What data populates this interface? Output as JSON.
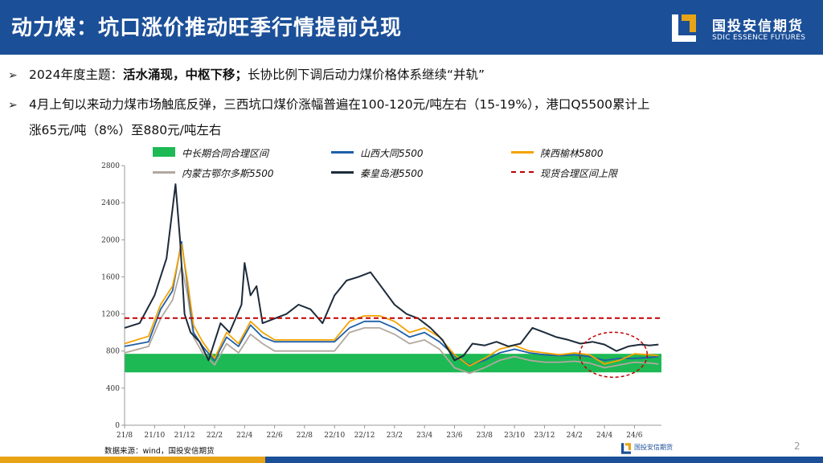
{
  "header": {
    "title": "动力煤：坑口涨价推动旺季行情提前兑现",
    "logo_cn": "国投安信期货",
    "logo_en": "SDIC ESSENCE FUTURES",
    "color": "#1b4f98"
  },
  "bullets": [
    {
      "pre": "2024年度主题：",
      "bold": "活水涌现，中枢下移；",
      "post": "长协比例下调后动力煤价格体系继续“并轨”"
    },
    {
      "line1": "4月上旬以来动力煤市场触底反弹，三西坑口煤价涨幅普遍在100-120元/吨左右（15-19%），港口Q5500累计上",
      "line2": "涨65元/吨（8%）至880元/吨左右"
    }
  ],
  "chart_data": {
    "type": "line",
    "ylim": [
      0,
      2800
    ],
    "yticks": [
      0,
      400,
      800,
      1200,
      1600,
      2000,
      2400,
      2800
    ],
    "xtick_labels": [
      "21/8",
      "21/10",
      "21/12",
      "22/2",
      "22/4",
      "22/6",
      "22/8",
      "22/10",
      "22/12",
      "23/2",
      "23/4",
      "23/6",
      "23/8",
      "23/10",
      "23/12",
      "24/2",
      "24/4",
      "24/6"
    ],
    "band": {
      "name": "中长期合同合理区间",
      "range": [
        570,
        770
      ],
      "color": "#1db954"
    },
    "reference": {
      "name": "现货合理区间上限",
      "value": 1155,
      "color": "#c00000"
    },
    "series": [
      {
        "name": "山西大同5500",
        "color": "#1f5fa8",
        "x": [
          0,
          0.8,
          1.2,
          1.6,
          1.9,
          2.1,
          2.3,
          2.6,
          3,
          3.4,
          3.8,
          4.2,
          4.6,
          5,
          5.5,
          6,
          6.5,
          7,
          7.5,
          8,
          8.5,
          9,
          9.5,
          10,
          10.5,
          11,
          11.5,
          12,
          12.5,
          13,
          13.5,
          14,
          14.5,
          15,
          15.5,
          16,
          16.5,
          17,
          17.5,
          17.8
        ],
        "values": [
          850,
          900,
          1250,
          1450,
          1980,
          1500,
          1000,
          850,
          700,
          950,
          850,
          1080,
          950,
          900,
          900,
          900,
          900,
          900,
          1050,
          1120,
          1120,
          1050,
          950,
          1000,
          900,
          750,
          650,
          700,
          780,
          820,
          780,
          760,
          750,
          760,
          740,
          700,
          720,
          720,
          730,
          740
        ]
      },
      {
        "name": "陕西榆林5800",
        "color": "#f5a300",
        "x": [
          0,
          0.8,
          1.2,
          1.6,
          1.9,
          2.1,
          2.3,
          2.6,
          3,
          3.4,
          3.8,
          4.2,
          4.6,
          5,
          5.5,
          6,
          6.5,
          7,
          7.5,
          8,
          8.5,
          9,
          9.5,
          10,
          10.5,
          11,
          11.5,
          12,
          12.5,
          13,
          13.5,
          14,
          14.5,
          15,
          15.5,
          16,
          16.5,
          17,
          17.5,
          17.8
        ],
        "values": [
          880,
          960,
          1300,
          1500,
          1950,
          1550,
          1080,
          900,
          720,
          1000,
          880,
          1120,
          1000,
          920,
          920,
          920,
          920,
          920,
          1120,
          1180,
          1180,
          1120,
          1000,
          1050,
          950,
          760,
          640,
          720,
          820,
          860,
          800,
          780,
          760,
          780,
          760,
          660,
          700,
          770,
          760,
          750
        ]
      },
      {
        "name": "内蒙古鄂尔多斯5500",
        "color": "#b2a89f",
        "x": [
          0,
          0.8,
          1.2,
          1.6,
          1.9,
          2.1,
          2.3,
          2.6,
          3,
          3.4,
          3.8,
          4.2,
          4.6,
          5,
          5.5,
          6,
          6.5,
          7,
          7.5,
          8,
          8.5,
          9,
          9.5,
          10,
          10.5,
          11,
          11.5,
          12,
          12.5,
          13,
          13.5,
          14,
          14.5,
          15,
          15.5,
          16,
          16.5,
          17,
          17.5,
          17.8
        ],
        "values": [
          780,
          850,
          1150,
          1350,
          1720,
          1400,
          950,
          780,
          650,
          880,
          780,
          980,
          880,
          800,
          800,
          800,
          800,
          800,
          1000,
          1050,
          1050,
          980,
          880,
          920,
          820,
          620,
          560,
          620,
          700,
          740,
          700,
          680,
          680,
          690,
          670,
          620,
          650,
          680,
          670,
          660
        ]
      },
      {
        "name": "秦皇岛港5500",
        "color": "#1c2b3a",
        "x": [
          0,
          0.5,
          1,
          1.4,
          1.7,
          1.85,
          2,
          2.2,
          2.5,
          2.8,
          3.2,
          3.5,
          3.9,
          4,
          4.2,
          4.4,
          4.6,
          5,
          5.4,
          5.8,
          6.2,
          6.6,
          7,
          7.4,
          7.8,
          8.2,
          8.5,
          9,
          9.4,
          9.8,
          10.2,
          10.6,
          11,
          11.3,
          11.6,
          12,
          12.4,
          12.8,
          13.2,
          13.6,
          14,
          14.4,
          14.8,
          15.2,
          15.6,
          16,
          16.4,
          16.8,
          17.2,
          17.5,
          17.8
        ],
        "values": [
          1050,
          1100,
          1400,
          1800,
          2600,
          2000,
          1200,
          1000,
          900,
          700,
          1100,
          1000,
          1300,
          1750,
          1400,
          1500,
          1100,
          1150,
          1200,
          1300,
          1250,
          1100,
          1400,
          1560,
          1600,
          1650,
          1520,
          1300,
          1200,
          1150,
          1050,
          920,
          700,
          750,
          880,
          860,
          900,
          850,
          880,
          1050,
          1000,
          950,
          920,
          880,
          900,
          870,
          800,
          850,
          870,
          860,
          870
        ]
      }
    ]
  },
  "source": "数据来源：wind，国投安信期货",
  "mini_logo": "国投安信期货",
  "page_number": "2"
}
